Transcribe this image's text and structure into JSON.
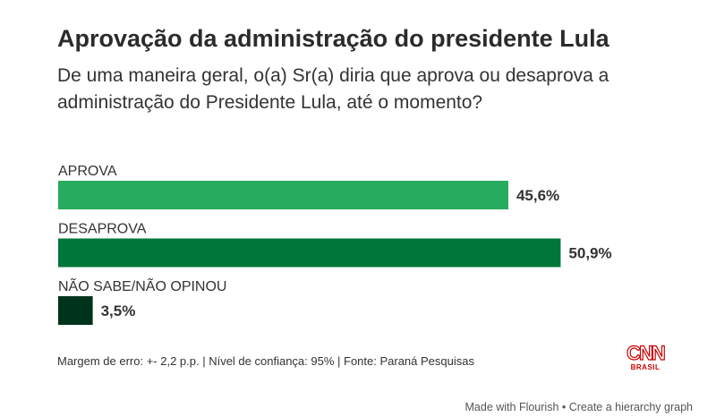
{
  "chart_data": {
    "type": "bar",
    "orientation": "horizontal",
    "title": "Aprovação da administração do presidente Lula",
    "subtitle": "De uma maneira geral, o(a) Sr(a) diria que aprova ou desaprova a administração do Presidente Lula, até o momento?",
    "categories": [
      "APROVA",
      "DESAPROVA",
      "NÃO SABE/NÃO OPINOU"
    ],
    "values": [
      45.6,
      50.9,
      3.5
    ],
    "value_labels": [
      "45,6%",
      "50,9%",
      "3,5%"
    ],
    "colors": [
      "#27ab5f",
      "#00763a",
      "#00331b"
    ],
    "grid": false,
    "xlim": [
      0,
      55
    ]
  },
  "footer": {
    "note": "Margem de erro: +- 2,2 p.p. | Nível de confiança: 95% | Fonte: Paraná Pesquisas",
    "logo": "CNN BRASIL",
    "credit": "Made with Flourish • Create a hierarchy graph"
  }
}
